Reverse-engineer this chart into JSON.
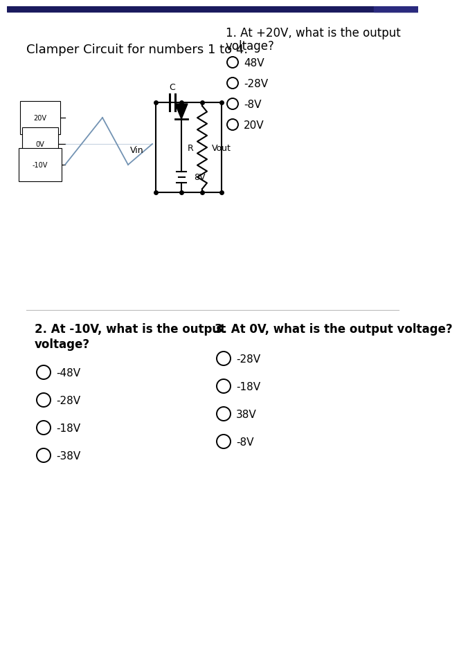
{
  "white": "#ffffff",
  "black": "#000000",
  "dark_navy": "#1a1a3e",
  "light_gray": "#e8e8e8",
  "blue_line": "#7393b3",
  "title_circuit": "Clamper Circuit for numbers 1 to 4.",
  "q1_line1": "1. At +20V, what is the output",
  "q1_line2": "voltage?",
  "q1_options": [
    "48V",
    "-28V",
    "-8V",
    "20V"
  ],
  "q2_line1": "2. At -10V, what is the output",
  "q2_line2": "voltage?",
  "q2_options": [
    "-48V",
    "-28V",
    "-18V",
    "-38V"
  ],
  "q3_title": "3. At 0V, what is the output voltage?",
  "q3_options": [
    "-28V",
    "-18V",
    "38V",
    "-8V"
  ],
  "font_size_title": 13,
  "font_size_q": 12,
  "font_size_opt": 11,
  "font_size_circuit": 9,
  "top_bar_color": "#1a1a5e",
  "top_bar2_color": "#2a2a7e"
}
